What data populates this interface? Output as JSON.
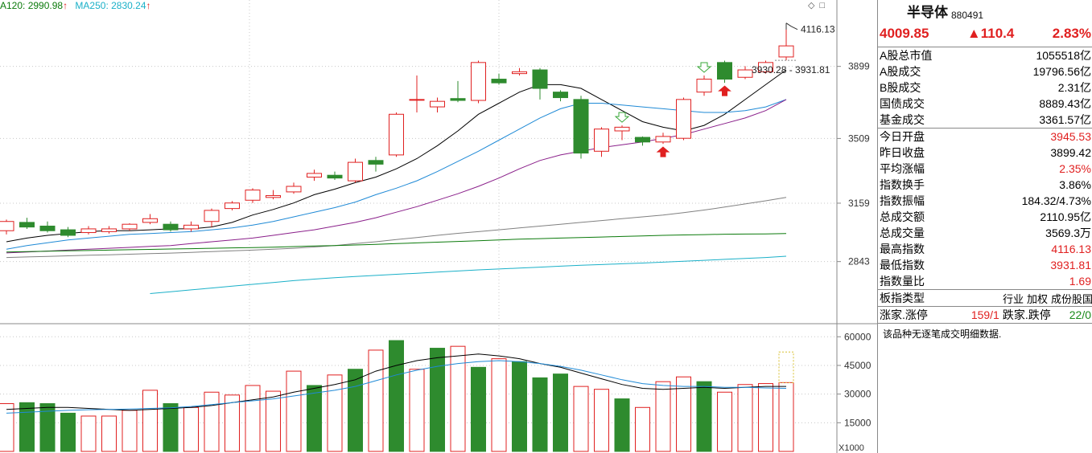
{
  "legend": {
    "ma120": "A120: 2990.98",
    "ma120_arrow": "↑",
    "ma250": "MA250: 2830.24",
    "ma250_arrow": "↑",
    "icons": [
      "diamond-icon",
      "square-icon"
    ]
  },
  "colors": {
    "up": "#e02020",
    "down": "#2e8b2e",
    "ma5": "#000000",
    "ma10": "#1f8ad6",
    "ma20": "#8a1f8a",
    "ma60": "#808080",
    "ma120": "#0b7a0b",
    "ma250": "#1ab0c8"
  },
  "annotations": {
    "high_label": "4116.13",
    "range_label": "3930.28 - 3931.81",
    "volume_unit": "X1000"
  },
  "chart_data": [
    {
      "type": "candlestick",
      "title": "",
      "y_ticks": [
        2843,
        3159,
        3509,
        3899
      ],
      "ylim": [
        2520,
        4180
      ],
      "grid": true,
      "candles": [
        {
          "o": 3010,
          "c": 3060,
          "h": 3070,
          "l": 2990
        },
        {
          "o": 3055,
          "c": 3030,
          "h": 3080,
          "l": 3020
        },
        {
          "o": 3035,
          "c": 3010,
          "h": 3060,
          "l": 3000
        },
        {
          "o": 3015,
          "c": 2985,
          "h": 3030,
          "l": 2975
        },
        {
          "o": 3000,
          "c": 3020,
          "h": 3035,
          "l": 2990
        },
        {
          "o": 3005,
          "c": 3020,
          "h": 3035,
          "l": 2995
        },
        {
          "o": 3020,
          "c": 3045,
          "h": 3050,
          "l": 3010
        },
        {
          "o": 3055,
          "c": 3075,
          "h": 3100,
          "l": 3045
        },
        {
          "o": 3045,
          "c": 3015,
          "h": 3060,
          "l": 3005
        },
        {
          "o": 3020,
          "c": 3040,
          "h": 3060,
          "l": 3005
        },
        {
          "o": 3060,
          "c": 3120,
          "h": 3130,
          "l": 3030
        },
        {
          "o": 3130,
          "c": 3160,
          "h": 3170,
          "l": 3120
        },
        {
          "o": 3175,
          "c": 3230,
          "h": 3240,
          "l": 3160
        },
        {
          "o": 3190,
          "c": 3200,
          "h": 3230,
          "l": 3180
        },
        {
          "o": 3220,
          "c": 3250,
          "h": 3270,
          "l": 3210
        },
        {
          "o": 3300,
          "c": 3320,
          "h": 3340,
          "l": 3280
        },
        {
          "o": 3310,
          "c": 3295,
          "h": 3330,
          "l": 3285
        },
        {
          "o": 3280,
          "c": 3380,
          "h": 3400,
          "l": 3270
        },
        {
          "o": 3390,
          "c": 3370,
          "h": 3410,
          "l": 3330
        },
        {
          "o": 3420,
          "c": 3640,
          "h": 3650,
          "l": 3410
        },
        {
          "o": 3720,
          "c": 3720,
          "h": 3850,
          "l": 3650
        },
        {
          "o": 3680,
          "c": 3710,
          "h": 3730,
          "l": 3650
        },
        {
          "o": 3725,
          "c": 3715,
          "h": 3820,
          "l": 3705
        },
        {
          "o": 3715,
          "c": 3920,
          "h": 3930,
          "l": 3700
        },
        {
          "o": 3830,
          "c": 3810,
          "h": 3860,
          "l": 3800
        },
        {
          "o": 3860,
          "c": 3870,
          "h": 3890,
          "l": 3850
        },
        {
          "o": 3880,
          "c": 3780,
          "h": 3890,
          "l": 3720
        },
        {
          "o": 3760,
          "c": 3730,
          "h": 3770,
          "l": 3710
        },
        {
          "o": 3720,
          "c": 3430,
          "h": 3740,
          "l": 3400
        },
        {
          "o": 3440,
          "c": 3560,
          "h": 3570,
          "l": 3410
        },
        {
          "o": 3550,
          "c": 3570,
          "h": 3580,
          "l": 3500
        },
        {
          "o": 3515,
          "c": 3490,
          "h": 3520,
          "l": 3470
        },
        {
          "o": 3490,
          "c": 3520,
          "h": 3540,
          "l": 3480
        },
        {
          "o": 3510,
          "c": 3720,
          "h": 3730,
          "l": 3500
        },
        {
          "o": 3760,
          "c": 3830,
          "h": 3850,
          "l": 3740
        },
        {
          "o": 3920,
          "c": 3830,
          "h": 3930,
          "l": 3810
        },
        {
          "o": 3840,
          "c": 3880,
          "h": 3900,
          "l": 3830
        },
        {
          "o": 3870,
          "c": 3920,
          "h": 3930,
          "l": 3860
        },
        {
          "o": 3950,
          "c": 4010,
          "h": 4116,
          "l": 3932
        }
      ],
      "lines": [
        {
          "name": "MA5",
          "values": [
            2950,
            2970,
            2985,
            2995,
            3005,
            3010,
            3010,
            3015,
            3020,
            3020,
            3030,
            3055,
            3095,
            3125,
            3160,
            3205,
            3235,
            3270,
            3300,
            3345,
            3400,
            3470,
            3550,
            3640,
            3700,
            3760,
            3800,
            3800,
            3780,
            3720,
            3660,
            3600,
            3570,
            3550,
            3580,
            3640,
            3720,
            3800,
            3880
          ]
        },
        {
          "name": "MA10",
          "values": [
            2910,
            2930,
            2945,
            2960,
            2970,
            2980,
            2990,
            2995,
            3000,
            3005,
            3015,
            3025,
            3040,
            3060,
            3085,
            3110,
            3135,
            3165,
            3205,
            3240,
            3280,
            3330,
            3385,
            3440,
            3500,
            3560,
            3620,
            3670,
            3700,
            3700,
            3690,
            3680,
            3670,
            3660,
            3650,
            3650,
            3660,
            3680,
            3720
          ]
        },
        {
          "name": "MA20",
          "values": [
            2890,
            2895,
            2900,
            2905,
            2910,
            2915,
            2920,
            2925,
            2930,
            2940,
            2950,
            2960,
            2970,
            2985,
            3000,
            3015,
            3035,
            3055,
            3080,
            3110,
            3140,
            3175,
            3210,
            3250,
            3295,
            3345,
            3390,
            3420,
            3440,
            3460,
            3475,
            3490,
            3510,
            3530,
            3560,
            3590,
            3620,
            3660,
            3720
          ]
        },
        {
          "name": "MA60",
          "values": [
            2865,
            2868,
            2871,
            2874,
            2877,
            2880,
            2883,
            2886,
            2889,
            2893,
            2897,
            2901,
            2905,
            2910,
            2915,
            2922,
            2930,
            2940,
            2950,
            2962,
            2973,
            2985,
            2996,
            3005,
            3015,
            3025,
            3035,
            3045,
            3055,
            3065,
            3075,
            3085,
            3095,
            3108,
            3122,
            3138,
            3155,
            3172,
            3190
          ]
        },
        {
          "name": "MA120",
          "values": [
            2895,
            2897,
            2899,
            2901,
            2903,
            2905,
            2907,
            2909,
            2911,
            2913,
            2915,
            2917,
            2919,
            2921,
            2924,
            2927,
            2930,
            2933,
            2936,
            2940,
            2944,
            2948,
            2952,
            2956,
            2960,
            2964,
            2967,
            2970,
            2973,
            2976,
            2979,
            2982,
            2985,
            2987,
            2989,
            2991,
            2992,
            2993,
            2995
          ]
        },
        {
          "name": "MA250",
          "values": [
            null,
            null,
            null,
            null,
            null,
            null,
            null,
            2670,
            2680,
            2690,
            2700,
            2710,
            2720,
            2730,
            2740,
            2748,
            2756,
            2762,
            2768,
            2774,
            2780,
            2786,
            2792,
            2798,
            2803,
            2808,
            2813,
            2818,
            2823,
            2827,
            2831,
            2835,
            2840,
            2845,
            2850,
            2855,
            2860,
            2865,
            2872
          ]
        }
      ]
    },
    {
      "type": "bar",
      "title": "",
      "y_ticks": [
        15000,
        30000,
        45000,
        60000
      ],
      "ylim": [
        0,
        66000
      ],
      "unit": "X1000",
      "values": [
        25000,
        25500,
        25000,
        20000,
        18500,
        18500,
        21500,
        32000,
        25000,
        23000,
        31000,
        29500,
        34500,
        31500,
        42000,
        34500,
        40000,
        43000,
        53000,
        58000,
        43000,
        54000,
        55000,
        44000,
        48500,
        47000,
        38500,
        40500,
        34000,
        32500,
        27500,
        23000,
        36500,
        39000,
        36500,
        31000,
        35000,
        35500,
        36000
      ],
      "up": [
        true,
        false,
        false,
        false,
        true,
        true,
        true,
        true,
        false,
        true,
        true,
        true,
        true,
        true,
        true,
        false,
        true,
        false,
        true,
        false,
        true,
        false,
        true,
        false,
        true,
        false,
        false,
        false,
        true,
        true,
        false,
        true,
        true,
        true,
        false,
        true,
        true,
        true,
        true
      ],
      "lines": [
        {
          "name": "VOL-MA1",
          "values": [
            22000,
            22500,
            23000,
            23000,
            22500,
            22000,
            21500,
            22000,
            22500,
            23000,
            24000,
            25500,
            27000,
            28500,
            31000,
            33000,
            35000,
            37500,
            42000,
            45000,
            47500,
            49000,
            50000,
            51000,
            50000,
            48500,
            46000,
            44000,
            41000,
            38000,
            35000,
            33000,
            32500,
            33000,
            33500,
            33000,
            33500,
            34000,
            34000
          ]
        },
        {
          "name": "VOL-MA2",
          "values": [
            20000,
            20500,
            21000,
            21500,
            21800,
            22000,
            22200,
            22500,
            22800,
            23500,
            24500,
            25500,
            26500,
            27500,
            29000,
            30500,
            32000,
            34000,
            37000,
            40000,
            42500,
            44500,
            46000,
            47000,
            47500,
            47000,
            46000,
            44500,
            42500,
            40000,
            37500,
            35500,
            34500,
            34000,
            34000,
            33500,
            33500,
            33200,
            33000
          ]
        }
      ]
    }
  ],
  "panel": {
    "name": "半导体",
    "code": "880491",
    "price": "4009.85",
    "change": "▲110.4",
    "pct": "2.83%",
    "rows_a": [
      {
        "label": "A股总市值",
        "value": "1055518亿"
      },
      {
        "label": "A股成交",
        "value": "19796.56亿"
      },
      {
        "label": "B股成交",
        "value": "2.31亿"
      },
      {
        "label": "国债成交",
        "value": "8889.43亿"
      },
      {
        "label": "基金成交",
        "value": "3361.57亿"
      }
    ],
    "rows_b": [
      {
        "label": "今日开盘",
        "value": "3945.53",
        "color": "red"
      },
      {
        "label": "昨日收盘",
        "value": "3899.42",
        "color": "black"
      },
      {
        "label": "平均涨幅",
        "value": "2.35%",
        "color": "red"
      },
      {
        "label": "指数换手",
        "value": "3.86%",
        "color": "black"
      },
      {
        "label": "指数振幅",
        "value": "184.32/4.73%",
        "color": "black"
      },
      {
        "label": "总成交额",
        "value": "2110.95亿",
        "color": "black"
      },
      {
        "label": "总成交量",
        "value": "3569.3万",
        "color": "black"
      },
      {
        "label": "最高指数",
        "value": "4116.13",
        "color": "red"
      },
      {
        "label": "最低指数",
        "value": "3931.81",
        "color": "red"
      },
      {
        "label": "指数量比",
        "value": "1.69",
        "color": "red"
      }
    ],
    "type_label": "板指类型",
    "type_tags": [
      "行业",
      "加权",
      "成份股国"
    ],
    "limit": {
      "up_label": "涨家.涨停",
      "up_value": "159/1",
      "down_label": "跌家.跌停",
      "down_value": "22/0"
    },
    "note": "该品种无逐笔成交明细数据."
  }
}
